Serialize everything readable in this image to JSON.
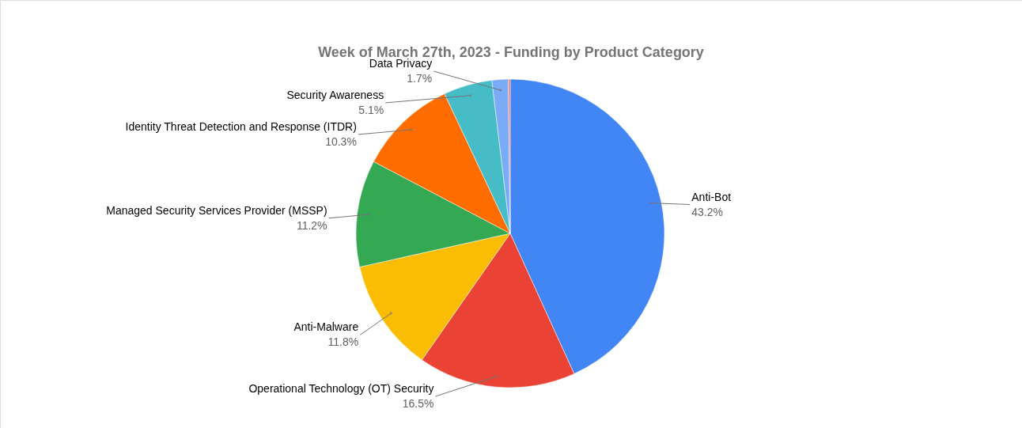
{
  "chart_data": {
    "type": "pie",
    "title": "Week of March 27th, 2023 - Funding by Product Category",
    "categories": [
      "Anti-Bot",
      "Operational Technology (OT) Security",
      "Anti-Malware",
      "Managed Security Services Provider (MSSP)",
      "Identity Threat Detection and Response (ITDR)",
      "Security Awareness",
      "Data Privacy",
      null
    ],
    "values": [
      43.2,
      16.5,
      11.8,
      11.2,
      10.3,
      5.1,
      1.7,
      0.2
    ],
    "colors": [
      "#4285f4",
      "#ea4335",
      "#fbbc04",
      "#34a853",
      "#ff6d01",
      "#46bdc6",
      "#7baaf7",
      "#f07b72"
    ],
    "value_labels": [
      "43.2%",
      "16.5%",
      "11.8%",
      "11.2%",
      "10.3%",
      "5.1%",
      "1.7%",
      null
    ],
    "legend": false
  }
}
